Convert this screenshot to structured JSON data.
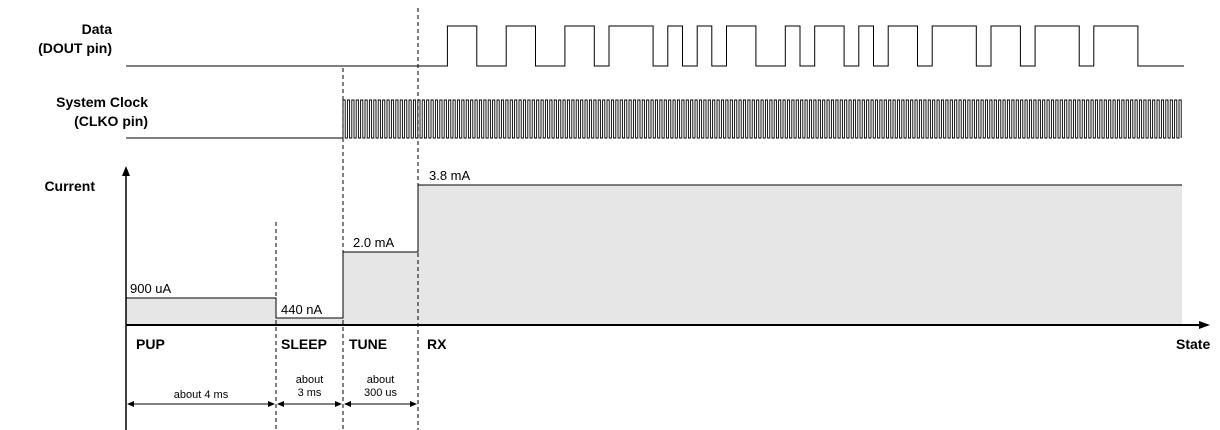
{
  "labels": {
    "data_line1": "Data",
    "data_line2": "(DOUT pin)",
    "clock_line1": "System Clock",
    "clock_line2": "(CLKO pin)",
    "current": "Current",
    "state_axis": "State"
  },
  "states": [
    {
      "name": "PUP",
      "current": "900 uA",
      "duration": "about 4 ms"
    },
    {
      "name": "SLEEP",
      "current": "440 nA",
      "duration": "about\n3 ms"
    },
    {
      "name": "TUNE",
      "current": "2.0 mA",
      "duration": "about\n300 us"
    },
    {
      "name": "RX",
      "current": "3.8 mA"
    }
  ],
  "data_bits": "0011001100110111010101100101101011011101101110111000",
  "colors": {
    "fill": "#e6e6e6",
    "line": "#000000"
  }
}
